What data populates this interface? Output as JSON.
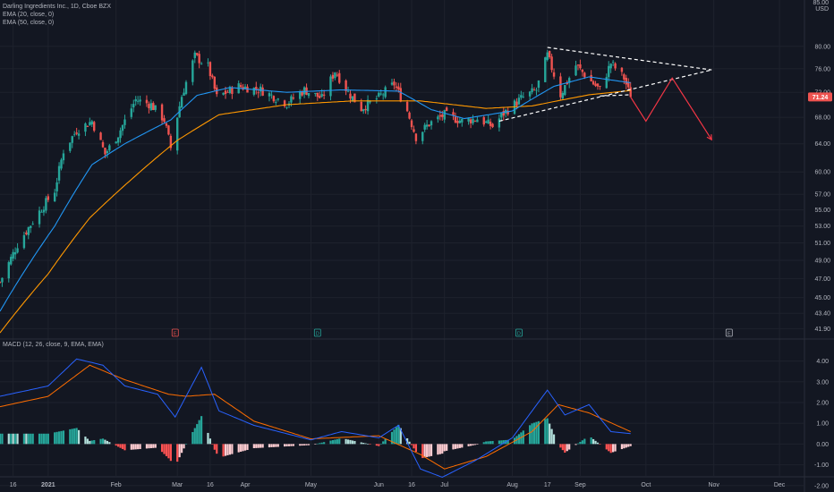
{
  "legend": {
    "title": "Darling Ingredients Inc., 1D, Cboe BZX",
    "ema20": "EMA (20, close, 0)",
    "ema50": "EMA (50, close, 0)",
    "macd": "MACD (12, 26, close, 9, EMA, EMA)"
  },
  "currency": {
    "top": "85.00",
    "unit": "USD"
  },
  "colors": {
    "background": "#131722",
    "grid": "#1e222d",
    "up": "#26a69a",
    "down": "#ef5350",
    "ema20": "#2196f3",
    "ema50": "#ff9800",
    "macd_line": "#2962ff",
    "signal_line": "#ff6d00",
    "hist_up_strong": "#26a69a",
    "hist_up_weak": "#b2dfdb",
    "hist_down_strong": "#ff5252",
    "hist_down_weak": "#ffcdd2",
    "pattern": "#ffffff",
    "forecast": "#f23645",
    "price_label": "#ef5350"
  },
  "chart_data": [
    {
      "type": "candlestick",
      "title": "Darling Ingredients Inc., 1D, Cboe BZX",
      "y_scale": "log",
      "ylim": [
        41.0,
        84.0
      ],
      "y_ticks": [
        "80.00",
        "76.00",
        "72.00",
        "68.00",
        "64.00",
        "60.00",
        "57.00",
        "55.00",
        "53.00",
        "51.00",
        "49.00",
        "47.00",
        "45.00",
        "43.40",
        "41.90"
      ],
      "last_price": "71.24",
      "x_date_range": [
        "2020-12-10",
        "2021-12-12"
      ],
      "x_ticks": [
        {
          "label": "16",
          "date": "2020-12-16"
        },
        {
          "label": "2021",
          "date": "2021-01-01"
        },
        {
          "label": "Feb",
          "date": "2021-02-01"
        },
        {
          "label": "Mar",
          "date": "2021-03-01"
        },
        {
          "label": "16",
          "date": "2021-03-16"
        },
        {
          "label": "Apr",
          "date": "2021-04-01"
        },
        {
          "label": "May",
          "date": "2021-05-01"
        },
        {
          "label": "Jun",
          "date": "2021-06-01"
        },
        {
          "label": "16",
          "date": "2021-06-16"
        },
        {
          "label": "Jul",
          "date": "2021-07-01"
        },
        {
          "label": "Aug",
          "date": "2021-08-01"
        },
        {
          "label": "17",
          "date": "2021-08-17"
        },
        {
          "label": "Sep",
          "date": "2021-09-01"
        },
        {
          "label": "Oct",
          "date": "2021-10-01"
        },
        {
          "label": "Nov",
          "date": "2021-11-01"
        },
        {
          "label": "Dec",
          "date": "2021-12-01"
        }
      ],
      "close_path": [
        [
          "2020-12-10",
          46.6
        ],
        [
          "2020-12-18",
          50.8
        ],
        [
          "2020-12-28",
          54.8
        ],
        [
          "2021-01-04",
          57.5
        ],
        [
          "2021-01-08",
          63.0
        ],
        [
          "2021-01-14",
          66.0
        ],
        [
          "2021-01-21",
          67.4
        ],
        [
          "2021-01-27",
          62.5
        ],
        [
          "2021-02-02",
          65.4
        ],
        [
          "2021-02-10",
          70.8
        ],
        [
          "2021-02-17",
          70.0
        ],
        [
          "2021-02-23",
          67.6
        ],
        [
          "2021-02-26",
          63.4
        ],
        [
          "2021-03-03",
          71.4
        ],
        [
          "2021-03-09",
          78.2
        ],
        [
          "2021-03-15",
          76.4
        ],
        [
          "2021-03-19",
          71.2
        ],
        [
          "2021-03-29",
          73.0
        ],
        [
          "2021-04-08",
          72.4
        ],
        [
          "2021-04-20",
          70.2
        ],
        [
          "2021-04-28",
          72.4
        ],
        [
          "2021-05-06",
          71.0
        ],
        [
          "2021-05-12",
          75.6
        ],
        [
          "2021-05-18",
          72.0
        ],
        [
          "2021-05-24",
          69.4
        ],
        [
          "2021-06-01",
          71.2
        ],
        [
          "2021-06-08",
          73.4
        ],
        [
          "2021-06-14",
          69.0
        ],
        [
          "2021-06-18",
          65.0
        ],
        [
          "2021-06-24",
          67.0
        ],
        [
          "2021-07-01",
          68.4
        ],
        [
          "2021-07-09",
          67.4
        ],
        [
          "2021-07-16",
          67.8
        ],
        [
          "2021-07-23",
          66.6
        ],
        [
          "2021-07-28",
          68.6
        ],
        [
          "2021-08-05",
          71.0
        ],
        [
          "2021-08-12",
          72.4
        ],
        [
          "2021-08-17",
          78.4
        ],
        [
          "2021-08-23",
          71.6
        ],
        [
          "2021-08-30",
          76.6
        ],
        [
          "2021-09-06",
          73.8
        ],
        [
          "2021-09-10",
          72.4
        ],
        [
          "2021-09-15",
          77.0
        ],
        [
          "2021-09-21",
          74.4
        ],
        [
          "2021-09-24",
          71.24
        ]
      ],
      "ema_20_path": [
        [
          "2020-12-10",
          43.6
        ],
        [
          "2021-01-04",
          53.0
        ],
        [
          "2021-01-21",
          61.0
        ],
        [
          "2021-02-05",
          64.0
        ],
        [
          "2021-02-26",
          67.6
        ],
        [
          "2021-03-10",
          71.5
        ],
        [
          "2021-03-25",
          72.8
        ],
        [
          "2021-04-20",
          72.0
        ],
        [
          "2021-05-15",
          72.4
        ],
        [
          "2021-06-10",
          72.2
        ],
        [
          "2021-06-25",
          69.2
        ],
        [
          "2021-07-10",
          67.8
        ],
        [
          "2021-08-01",
          69.0
        ],
        [
          "2021-08-20",
          73.0
        ],
        [
          "2021-09-05",
          74.6
        ],
        [
          "2021-09-24",
          73.6
        ]
      ],
      "ema_50_path": [
        [
          "2020-12-10",
          41.5
        ],
        [
          "2021-01-01",
          47.5
        ],
        [
          "2021-01-20",
          54.0
        ],
        [
          "2021-02-10",
          59.5
        ],
        [
          "2021-03-01",
          64.5
        ],
        [
          "2021-03-20",
          68.4
        ],
        [
          "2021-04-20",
          70.0
        ],
        [
          "2021-05-20",
          70.6
        ],
        [
          "2021-06-20",
          70.6
        ],
        [
          "2021-07-20",
          69.4
        ],
        [
          "2021-08-10",
          69.8
        ],
        [
          "2021-09-05",
          71.6
        ],
        [
          "2021-09-24",
          72.3
        ]
      ],
      "annotations": {
        "triangle_upper": [
          [
            "2021-08-17",
            79.8
          ],
          [
            "2021-10-31",
            75.8
          ]
        ],
        "triangle_lower": [
          [
            "2021-07-26",
            67.4
          ],
          [
            "2021-10-31",
            75.8
          ]
        ],
        "triangle_bottom": [
          [
            "2021-09-10",
            71.4
          ],
          [
            "2021-09-24",
            71.6
          ]
        ],
        "forecast_path": [
          [
            "2021-09-24",
            71.24
          ],
          [
            "2021-10-01",
            67.4
          ],
          [
            "2021-10-13",
            74.4
          ],
          [
            "2021-10-31",
            64.6
          ]
        ],
        "event_markers": [
          {
            "label": "E",
            "date": "2021-02-28",
            "kind": "earnings-past"
          },
          {
            "label": "D",
            "date": "2021-05-04",
            "kind": "dividend"
          },
          {
            "label": "D",
            "date": "2021-08-04",
            "kind": "dividend"
          },
          {
            "label": "E",
            "date": "2021-11-08",
            "kind": "earnings-next"
          }
        ]
      }
    },
    {
      "type": "macd",
      "title": "MACD (12, 26, close, 9, EMA, EMA)",
      "ylim": [
        -1.45,
        4.5
      ],
      "y_ticks": [
        "4.00",
        "3.00",
        "2.00",
        "1.00",
        "0.00",
        "-1.00",
        "-2.00"
      ],
      "macd_path": [
        [
          "2020-12-10",
          2.3
        ],
        [
          "2021-01-01",
          2.8
        ],
        [
          "2021-01-14",
          4.1
        ],
        [
          "2021-01-26",
          3.8
        ],
        [
          "2021-02-05",
          2.8
        ],
        [
          "2021-02-20",
          2.4
        ],
        [
          "2021-02-28",
          1.3
        ],
        [
          "2021-03-12",
          3.7
        ],
        [
          "2021-03-20",
          1.6
        ],
        [
          "2021-04-05",
          0.9
        ],
        [
          "2021-05-01",
          0.2
        ],
        [
          "2021-05-15",
          0.6
        ],
        [
          "2021-06-01",
          0.3
        ],
        [
          "2021-06-10",
          0.9
        ],
        [
          "2021-06-20",
          -1.2
        ],
        [
          "2021-06-30",
          -1.6
        ],
        [
          "2021-07-15",
          -0.8
        ],
        [
          "2021-08-01",
          0.3
        ],
        [
          "2021-08-17",
          2.6
        ],
        [
          "2021-08-25",
          1.4
        ],
        [
          "2021-09-05",
          1.9
        ],
        [
          "2021-09-15",
          0.6
        ],
        [
          "2021-09-24",
          0.5
        ]
      ],
      "signal_path": [
        [
          "2020-12-10",
          1.8
        ],
        [
          "2021-01-01",
          2.3
        ],
        [
          "2021-01-20",
          3.8
        ],
        [
          "2021-02-05",
          3.1
        ],
        [
          "2021-02-25",
          2.4
        ],
        [
          "2021-03-05",
          2.3
        ],
        [
          "2021-03-18",
          2.4
        ],
        [
          "2021-04-05",
          1.1
        ],
        [
          "2021-05-01",
          0.25
        ],
        [
          "2021-06-01",
          0.4
        ],
        [
          "2021-06-20",
          -0.5
        ],
        [
          "2021-07-01",
          -1.2
        ],
        [
          "2021-07-20",
          -0.6
        ],
        [
          "2021-08-10",
          0.6
        ],
        [
          "2021-08-22",
          1.9
        ],
        [
          "2021-09-05",
          1.5
        ],
        [
          "2021-09-24",
          0.6
        ]
      ]
    }
  ]
}
